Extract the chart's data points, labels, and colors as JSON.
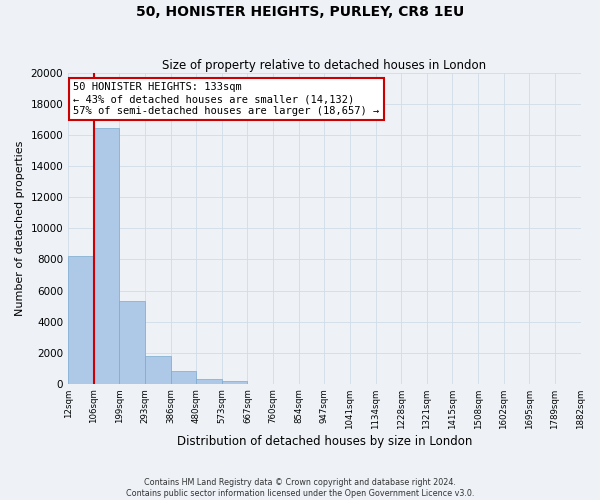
{
  "title": "50, HONISTER HEIGHTS, PURLEY, CR8 1EU",
  "subtitle": "Size of property relative to detached houses in London",
  "xlabel": "Distribution of detached houses by size in London",
  "ylabel": "Number of detached properties",
  "bin_labels": [
    "12sqm",
    "106sqm",
    "199sqm",
    "293sqm",
    "386sqm",
    "480sqm",
    "573sqm",
    "667sqm",
    "760sqm",
    "854sqm",
    "947sqm",
    "1041sqm",
    "1134sqm",
    "1228sqm",
    "1321sqm",
    "1415sqm",
    "1508sqm",
    "1602sqm",
    "1695sqm",
    "1789sqm",
    "1882sqm"
  ],
  "bar_heights": [
    8200,
    16500,
    5300,
    1800,
    800,
    300,
    200,
    0,
    0,
    0,
    0,
    0,
    0,
    0,
    0,
    0,
    0,
    0,
    0,
    0
  ],
  "bar_color": "#aec8e8",
  "bar_edge_color": "#7aaad0",
  "vline_x": 1,
  "vline_color": "#cc0000",
  "ylim": [
    0,
    20000
  ],
  "yticks": [
    0,
    2000,
    4000,
    6000,
    8000,
    10000,
    12000,
    14000,
    16000,
    18000,
    20000
  ],
  "annotation_title": "50 HONISTER HEIGHTS: 133sqm",
  "annotation_line1": "← 43% of detached houses are smaller (14,132)",
  "annotation_line2": "57% of semi-detached houses are larger (18,657) →",
  "annotation_box_color": "#ffffff",
  "annotation_border_color": "#cc0000",
  "footer_line1": "Contains HM Land Registry data © Crown copyright and database right 2024.",
  "footer_line2": "Contains public sector information licensed under the Open Government Licence v3.0.",
  "grid_color": "#d0dce8",
  "background_color": "#eef2f7"
}
